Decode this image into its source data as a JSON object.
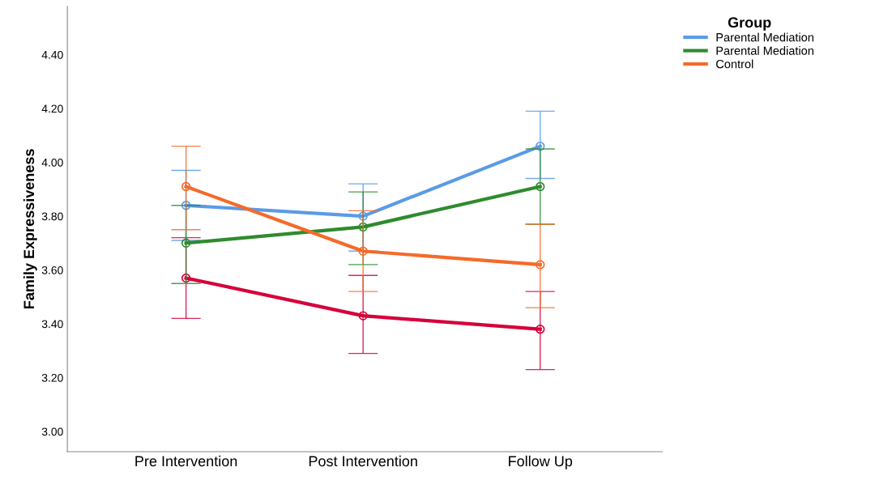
{
  "chart_data": {
    "type": "line",
    "ylabel": "Family Expressiveness",
    "legend_title": "Group",
    "legend": "top right",
    "marker": "circle",
    "line_style": "solid",
    "grid": false,
    "categories": [
      "Pre Intervention",
      "Post Intervention",
      "Follow Up"
    ],
    "ylim": [
      2.925,
      4.58
    ],
    "yticks": [
      {
        "value": 3.0,
        "label": "3.00"
      },
      {
        "value": 3.2,
        "label": "3.20"
      },
      {
        "value": 3.4,
        "label": "3.40"
      },
      {
        "value": 3.6,
        "label": "3.60"
      },
      {
        "value": 3.8,
        "label": "3.80"
      },
      {
        "value": 4.0,
        "label": "4.00"
      },
      {
        "value": 4.2,
        "label": "4.20"
      },
      {
        "value": 4.4,
        "label": "4.40"
      }
    ],
    "series": [
      {
        "name": "Parental Mediation",
        "color": "#5a9be6",
        "values": [
          3.84,
          3.8,
          4.06
        ],
        "errors": [
          [
            3.71,
            3.97
          ],
          [
            3.67,
            3.92
          ],
          [
            3.94,
            4.19
          ]
        ]
      },
      {
        "color": "#d6003b",
        "values": [
          3.57,
          3.43,
          3.38
        ],
        "errors": [
          [
            3.42,
            3.72
          ],
          [
            3.29,
            3.58
          ],
          [
            3.23,
            3.52
          ]
        ]
      },
      {
        "name": "Parental Mediation",
        "color": "#2e8b2e",
        "values": [
          3.7,
          3.76,
          3.91
        ],
        "errors": [
          [
            3.55,
            3.84
          ],
          [
            3.62,
            3.89
          ],
          [
            3.77,
            4.05
          ]
        ]
      },
      {
        "name": "Control",
        "color": "#f56a2a",
        "values": [
          3.91,
          3.67,
          3.62
        ],
        "errors": [
          [
            3.75,
            4.06
          ],
          [
            3.52,
            3.82
          ],
          [
            3.46,
            3.77
          ]
        ]
      }
    ]
  }
}
